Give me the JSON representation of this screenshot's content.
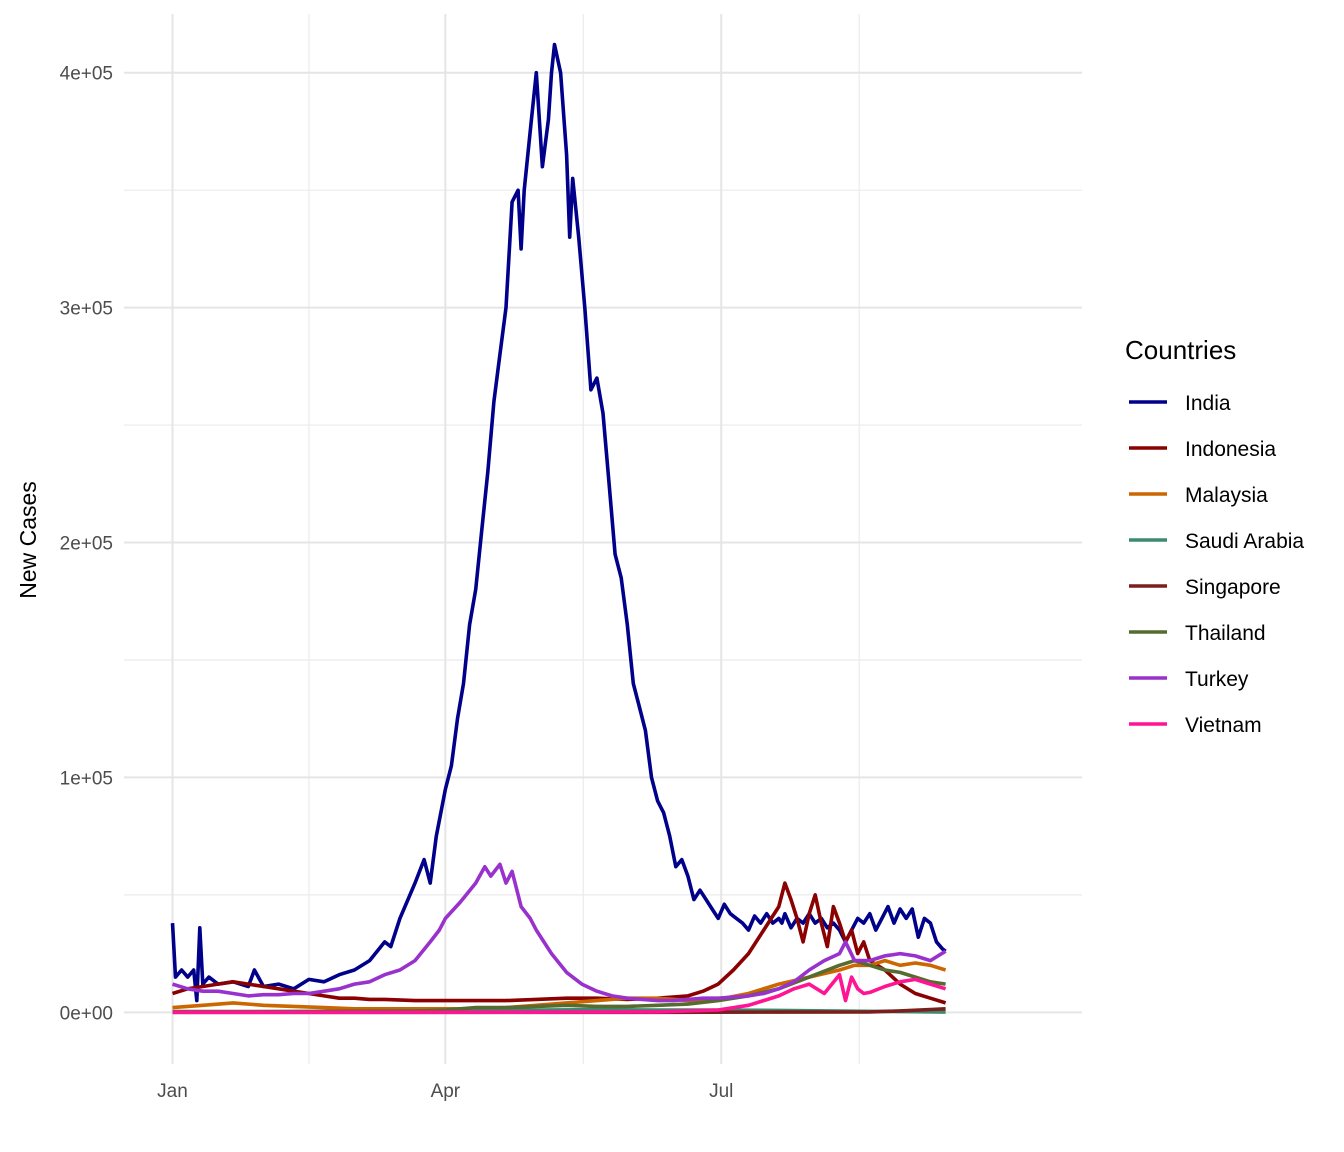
{
  "chart_data": {
    "type": "line",
    "title": "",
    "xlabel": "",
    "ylabel": "New Cases",
    "ylim": [
      -22000,
      425000
    ],
    "xlim": [
      -16,
      300
    ],
    "grid": true,
    "legend_title": "Countries",
    "legend_position": "right",
    "x_ticks": [
      {
        "value": 0,
        "label": "Jan"
      },
      {
        "value": 90,
        "label": "Apr"
      },
      {
        "value": 181,
        "label": "Jul"
      }
    ],
    "y_ticks": [
      {
        "value": 0,
        "label": "0e+00"
      },
      {
        "value": 100000,
        "label": "1e+05"
      },
      {
        "value": 200000,
        "label": "2e+05"
      },
      {
        "value": 300000,
        "label": "3e+05"
      },
      {
        "value": 400000,
        "label": "4e+05"
      }
    ],
    "series": [
      {
        "name": "India",
        "color": "#00008B",
        "x": [
          0,
          1,
          3,
          5,
          7,
          8,
          9,
          10,
          12,
          15,
          20,
          25,
          27,
          30,
          35,
          40,
          45,
          50,
          55,
          60,
          65,
          70,
          72,
          75,
          80,
          83,
          85,
          87,
          90,
          92,
          94,
          96,
          98,
          100,
          102,
          104,
          106,
          108,
          110,
          112,
          114,
          115,
          116,
          118,
          120,
          122,
          124,
          125,
          126,
          128,
          130,
          131,
          132,
          134,
          136,
          138,
          140,
          142,
          144,
          146,
          148,
          150,
          152,
          154,
          156,
          158,
          160,
          162,
          164,
          166,
          168,
          170,
          172,
          174,
          176,
          178,
          180,
          182,
          184,
          186,
          188,
          190,
          192,
          194,
          196,
          198,
          200,
          201,
          202,
          204,
          206,
          208,
          210,
          212,
          214,
          216,
          218,
          220,
          222,
          224,
          226,
          228,
          230,
          232,
          234,
          236,
          238,
          240,
          242,
          244,
          246,
          248,
          250,
          252,
          254,
          255
        ],
        "y": [
          38000,
          15000,
          18000,
          15000,
          18000,
          5000,
          36000,
          12000,
          15000,
          12000,
          13000,
          11000,
          18000,
          11000,
          12000,
          10000,
          14000,
          13000,
          16000,
          18000,
          22000,
          30000,
          28000,
          40000,
          55000,
          65000,
          55000,
          75000,
          95000,
          105000,
          125000,
          140000,
          165000,
          180000,
          205000,
          230000,
          260000,
          280000,
          300000,
          345000,
          350000,
          325000,
          350000,
          375000,
          400000,
          360000,
          380000,
          400000,
          412000,
          400000,
          365000,
          330000,
          355000,
          330000,
          300000,
          265000,
          270000,
          255000,
          225000,
          195000,
          185000,
          165000,
          140000,
          130000,
          120000,
          100000,
          90000,
          85000,
          75000,
          62000,
          65000,
          58000,
          48000,
          52000,
          48000,
          44000,
          40000,
          46000,
          42000,
          40000,
          38000,
          35000,
          41000,
          38000,
          42000,
          38000,
          40000,
          38000,
          42000,
          36000,
          40000,
          38000,
          42000,
          38000,
          40000,
          36000,
          38000,
          35000,
          30000,
          35000,
          40000,
          38000,
          42000,
          35000,
          40000,
          45000,
          38000,
          44000,
          40000,
          44000,
          32000,
          40000,
          38000,
          30000,
          27000,
          26000
        ]
      },
      {
        "name": "Indonesia",
        "color": "#8B0000",
        "x": [
          0,
          5,
          10,
          15,
          20,
          25,
          30,
          35,
          40,
          45,
          50,
          55,
          60,
          65,
          70,
          80,
          90,
          100,
          110,
          120,
          130,
          140,
          150,
          160,
          170,
          175,
          180,
          185,
          190,
          195,
          200,
          202,
          204,
          206,
          208,
          210,
          212,
          214,
          216,
          218,
          220,
          222,
          224,
          226,
          228,
          230,
          235,
          240,
          245,
          250,
          255
        ],
        "y": [
          8000,
          10000,
          11000,
          12000,
          13000,
          12000,
          11000,
          10000,
          9000,
          8000,
          7000,
          6000,
          6000,
          5500,
          5500,
          5000,
          5000,
          5000,
          5000,
          5500,
          6000,
          6000,
          5500,
          6000,
          7000,
          9000,
          12000,
          18000,
          25000,
          35000,
          45000,
          55000,
          48000,
          40000,
          30000,
          42000,
          50000,
          38000,
          28000,
          45000,
          38000,
          30000,
          35000,
          25000,
          30000,
          22000,
          18000,
          12000,
          8000,
          6000,
          4000
        ]
      },
      {
        "name": "Malaysia",
        "color": "#CC6600",
        "x": [
          0,
          10,
          20,
          30,
          40,
          50,
          60,
          70,
          80,
          90,
          100,
          110,
          120,
          130,
          140,
          150,
          160,
          170,
          180,
          190,
          200,
          210,
          220,
          225,
          230,
          235,
          240,
          245,
          250,
          255
        ],
        "y": [
          2000,
          3000,
          4000,
          3000,
          2500,
          2000,
          1500,
          1500,
          1500,
          1500,
          1500,
          2000,
          3000,
          4000,
          5000,
          6000,
          6000,
          5000,
          5500,
          8000,
          12000,
          15000,
          18000,
          20000,
          20000,
          22000,
          20000,
          21000,
          20000,
          18000
        ]
      },
      {
        "name": "Saudi Arabia",
        "color": "#3E8A6E",
        "x": [
          0,
          20,
          40,
          60,
          80,
          100,
          120,
          140,
          160,
          180,
          200,
          220,
          240,
          255
        ],
        "y": [
          200,
          200,
          300,
          400,
          600,
          900,
          1000,
          1100,
          1000,
          1000,
          800,
          500,
          300,
          100
        ]
      },
      {
        "name": "Singapore",
        "color": "#7B1E1E",
        "x": [
          0,
          40,
          80,
          120,
          160,
          200,
          230,
          240,
          250,
          255
        ],
        "y": [
          10,
          10,
          20,
          20,
          30,
          100,
          200,
          600,
          1200,
          1500
        ]
      },
      {
        "name": "Thailand",
        "color": "#556B2F",
        "x": [
          0,
          40,
          80,
          90,
          100,
          110,
          120,
          130,
          140,
          150,
          160,
          170,
          180,
          190,
          200,
          210,
          220,
          225,
          230,
          235,
          240,
          245,
          250,
          255
        ],
        "y": [
          300,
          300,
          500,
          1000,
          2000,
          2000,
          2500,
          3000,
          2500,
          2500,
          3000,
          3500,
          5000,
          7000,
          10000,
          15000,
          20000,
          22000,
          20000,
          18000,
          17000,
          15000,
          13000,
          12000
        ]
      },
      {
        "name": "Turkey",
        "color": "#9932CC",
        "x": [
          0,
          5,
          10,
          15,
          20,
          25,
          30,
          35,
          40,
          45,
          50,
          55,
          60,
          65,
          70,
          75,
          80,
          85,
          88,
          90,
          95,
          100,
          103,
          105,
          108,
          110,
          112,
          115,
          118,
          120,
          125,
          130,
          135,
          140,
          145,
          150,
          155,
          160,
          165,
          170,
          175,
          180,
          185,
          190,
          195,
          200,
          205,
          210,
          215,
          220,
          222,
          225,
          230,
          235,
          240,
          245,
          250,
          255
        ],
        "y": [
          12000,
          10000,
          9000,
          9000,
          8000,
          7000,
          7500,
          7500,
          8000,
          8000,
          9000,
          10000,
          12000,
          13000,
          16000,
          18000,
          22000,
          30000,
          35000,
          40000,
          47000,
          55000,
          62000,
          58000,
          63000,
          55000,
          60000,
          45000,
          40000,
          35000,
          25000,
          17000,
          12000,
          9000,
          7000,
          6000,
          5500,
          5000,
          5000,
          5500,
          6000,
          6000,
          6500,
          7000,
          8000,
          10000,
          13000,
          18000,
          22000,
          25000,
          30000,
          22000,
          22000,
          24000,
          25000,
          24000,
          22000,
          26000
        ]
      },
      {
        "name": "Vietnam",
        "color": "#FF1493",
        "x": [
          0,
          40,
          80,
          120,
          160,
          180,
          185,
          190,
          195,
          200,
          205,
          210,
          215,
          220,
          222,
          224,
          226,
          228,
          230,
          235,
          240,
          245,
          250,
          255
        ],
        "y": [
          5,
          5,
          5,
          50,
          200,
          1000,
          2000,
          3000,
          5000,
          7000,
          10000,
          12000,
          8000,
          16000,
          5000,
          15000,
          10000,
          8000,
          8500,
          11000,
          13000,
          14000,
          12000,
          10000
        ]
      }
    ]
  }
}
